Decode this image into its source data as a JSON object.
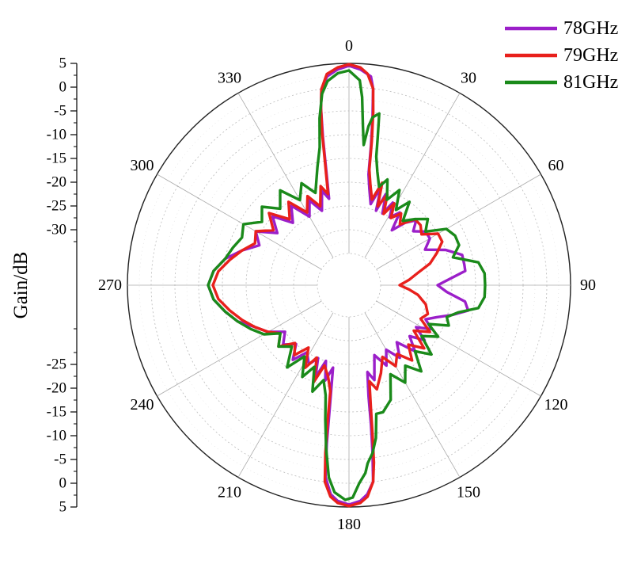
{
  "chart_data": {
    "type": "polar-line",
    "ylabel": "Gain/dB",
    "radial_axis": {
      "min": -35,
      "max": 5,
      "ticks_top": [
        5,
        0,
        -5,
        -10,
        -15,
        -20,
        -25,
        -30
      ],
      "ticks_bottom": [
        -25,
        -20,
        -15,
        -10,
        -5,
        0,
        5
      ],
      "tick_labels_top": [
        "5",
        "0",
        "-5",
        "-10",
        "-15",
        "-20",
        "-25",
        "-30"
      ],
      "tick_labels_bottom": [
        "-25",
        "-20",
        "-15",
        "-10",
        "-5",
        "0",
        "5"
      ]
    },
    "angular_axis": {
      "labels": [
        "0",
        "30",
        "60",
        "90",
        "120",
        "150",
        "180",
        "210",
        "240",
        "270",
        "300",
        "330"
      ],
      "angles": [
        0,
        30,
        60,
        90,
        120,
        150,
        180,
        210,
        240,
        270,
        300,
        330
      ],
      "direction": "clockwise",
      "zero_location": "top"
    },
    "grid": true,
    "legend_position": "top-right",
    "series": [
      {
        "name": "78GHz",
        "color": "#9b1fc9",
        "points": [
          [
            0,
            4.5
          ],
          [
            3,
            3.8
          ],
          [
            6,
            2.5
          ],
          [
            7,
            0
          ],
          [
            8,
            -6
          ],
          [
            9,
            -12
          ],
          [
            10,
            -18
          ],
          [
            12,
            -21
          ],
          [
            15,
            -24
          ],
          [
            18,
            -20
          ],
          [
            20,
            -25
          ],
          [
            22,
            -21
          ],
          [
            25,
            -25
          ],
          [
            28,
            -22
          ],
          [
            31,
            -25
          ],
          [
            35,
            -23
          ],
          [
            38,
            -27
          ],
          [
            42,
            -24
          ],
          [
            46,
            -22
          ],
          [
            50,
            -24
          ],
          [
            55,
            -22
          ],
          [
            60,
            -22
          ],
          [
            65,
            -24
          ],
          [
            70,
            -20
          ],
          [
            75,
            -17
          ],
          [
            80,
            -17
          ],
          [
            83,
            -17
          ],
          [
            86,
            -20
          ],
          [
            90,
            -23
          ],
          [
            94,
            -21
          ],
          [
            98,
            -17
          ],
          [
            102,
            -16
          ],
          [
            106,
            -19
          ],
          [
            110,
            -22
          ],
          [
            114,
            -24
          ],
          [
            118,
            -22
          ],
          [
            122,
            -25
          ],
          [
            126,
            -22
          ],
          [
            130,
            -25
          ],
          [
            135,
            -22
          ],
          [
            140,
            -26
          ],
          [
            145,
            -23
          ],
          [
            150,
            -26
          ],
          [
            155,
            -23
          ],
          [
            160,
            -26
          ],
          [
            165,
            -21
          ],
          [
            168,
            -23
          ],
          [
            170,
            -18
          ],
          [
            171,
            -12
          ],
          [
            172,
            -6
          ],
          [
            173,
            0
          ],
          [
            175,
            2.5
          ],
          [
            177,
            3.8
          ],
          [
            180,
            4.5
          ],
          [
            183,
            3.8
          ],
          [
            185,
            2.5
          ],
          [
            187,
            -1
          ],
          [
            188,
            -8
          ],
          [
            189,
            -16
          ],
          [
            191,
            -24
          ],
          [
            194,
            -21
          ],
          [
            197,
            -25
          ],
          [
            200,
            -21
          ],
          [
            203,
            -25
          ],
          [
            207,
            -23
          ],
          [
            212,
            -25
          ],
          [
            217,
            -22
          ],
          [
            222,
            -25
          ],
          [
            228,
            -23
          ],
          [
            234,
            -25
          ],
          [
            240,
            -22
          ],
          [
            246,
            -20
          ],
          [
            252,
            -17
          ],
          [
            258,
            -15
          ],
          [
            264,
            -13
          ],
          [
            270,
            -12
          ],
          [
            276,
            -13
          ],
          [
            282,
            -15
          ],
          [
            288,
            -18
          ],
          [
            294,
            -21
          ],
          [
            300,
            -19
          ],
          [
            306,
            -23
          ],
          [
            312,
            -20
          ],
          [
            318,
            -24
          ],
          [
            324,
            -21
          ],
          [
            330,
            -25
          ],
          [
            335,
            -22
          ],
          [
            340,
            -25
          ],
          [
            344,
            -21
          ],
          [
            347,
            -23
          ],
          [
            349,
            -16
          ],
          [
            350,
            -10
          ],
          [
            351,
            -4
          ],
          [
            352,
            0
          ],
          [
            354,
            2.5
          ],
          [
            357,
            3.8
          ],
          [
            360,
            4.5
          ]
        ]
      },
      {
        "name": "79GHz",
        "color": "#e8201c",
        "points": [
          [
            0,
            4.8
          ],
          [
            3,
            4.2
          ],
          [
            5,
            3
          ],
          [
            7,
            0
          ],
          [
            8,
            -5
          ],
          [
            9,
            -11
          ],
          [
            10,
            -17
          ],
          [
            12,
            -20
          ],
          [
            15,
            -23
          ],
          [
            18,
            -19
          ],
          [
            20,
            -24
          ],
          [
            23,
            -21
          ],
          [
            26,
            -25
          ],
          [
            29,
            -22
          ],
          [
            32,
            -25
          ],
          [
            36,
            -23
          ],
          [
            40,
            -25
          ],
          [
            45,
            -22
          ],
          [
            50,
            -22
          ],
          [
            55,
            -23
          ],
          [
            60,
            -20
          ],
          [
            65,
            -20
          ],
          [
            70,
            -22
          ],
          [
            75,
            -24
          ],
          [
            80,
            -27
          ],
          [
            85,
            -29
          ],
          [
            90,
            -31
          ],
          [
            94,
            -29
          ],
          [
            98,
            -27
          ],
          [
            104,
            -25
          ],
          [
            110,
            -24
          ],
          [
            115,
            -25
          ],
          [
            120,
            -22
          ],
          [
            125,
            -25
          ],
          [
            130,
            -21
          ],
          [
            135,
            -24
          ],
          [
            140,
            -21
          ],
          [
            145,
            -24
          ],
          [
            150,
            -22
          ],
          [
            155,
            -25
          ],
          [
            160,
            -22
          ],
          [
            165,
            -19
          ],
          [
            168,
            -21
          ],
          [
            170,
            -15
          ],
          [
            171,
            -10
          ],
          [
            172,
            -4
          ],
          [
            173,
            0
          ],
          [
            175,
            3
          ],
          [
            177,
            4.2
          ],
          [
            180,
            4.8
          ],
          [
            183,
            4.2
          ],
          [
            185,
            3
          ],
          [
            187,
            0
          ],
          [
            188,
            -6
          ],
          [
            189,
            -13
          ],
          [
            190,
            -19
          ],
          [
            193,
            -22
          ],
          [
            197,
            -24
          ],
          [
            200,
            -20
          ],
          [
            204,
            -25
          ],
          [
            208,
            -22
          ],
          [
            213,
            -26
          ],
          [
            218,
            -23
          ],
          [
            223,
            -25
          ],
          [
            229,
            -22
          ],
          [
            235,
            -24
          ],
          [
            240,
            -22
          ],
          [
            246,
            -20
          ],
          [
            252,
            -18
          ],
          [
            258,
            -16
          ],
          [
            264,
            -14
          ],
          [
            270,
            -13
          ],
          [
            276,
            -14
          ],
          [
            282,
            -16
          ],
          [
            288,
            -18
          ],
          [
            294,
            -20
          ],
          [
            300,
            -19
          ],
          [
            306,
            -22
          ],
          [
            312,
            -19
          ],
          [
            318,
            -23
          ],
          [
            324,
            -20
          ],
          [
            330,
            -24
          ],
          [
            335,
            -21
          ],
          [
            340,
            -24
          ],
          [
            344,
            -20
          ],
          [
            347,
            -22
          ],
          [
            349,
            -15
          ],
          [
            350,
            -9
          ],
          [
            351,
            -4
          ],
          [
            352,
            0
          ],
          [
            354,
            3
          ],
          [
            357,
            4.2
          ],
          [
            360,
            4.8
          ]
        ]
      },
      {
        "name": "81GHz",
        "color": "#1a8a1a",
        "points": [
          [
            0,
            3.5
          ],
          [
            3,
            1.5
          ],
          [
            4,
            -2
          ],
          [
            5,
            -8
          ],
          [
            6,
            -12
          ],
          [
            7,
            -8
          ],
          [
            8,
            -6
          ],
          [
            10,
            -5
          ],
          [
            11,
            -10
          ],
          [
            12,
            -14
          ],
          [
            14,
            -17
          ],
          [
            17,
            -20
          ],
          [
            20,
            -18
          ],
          [
            24,
            -22
          ],
          [
            28,
            -19
          ],
          [
            32,
            -23
          ],
          [
            36,
            -20
          ],
          [
            40,
            -24
          ],
          [
            45,
            -22
          ],
          [
            50,
            -20
          ],
          [
            55,
            -22
          ],
          [
            60,
            -18
          ],
          [
            65,
            -17
          ],
          [
            70,
            -17
          ],
          [
            75,
            -19
          ],
          [
            80,
            -14
          ],
          [
            85,
            -13
          ],
          [
            90,
            -13
          ],
          [
            95,
            -13
          ],
          [
            100,
            -14
          ],
          [
            104,
            -18
          ],
          [
            108,
            -20
          ],
          [
            112,
            -19
          ],
          [
            116,
            -23
          ],
          [
            120,
            -20
          ],
          [
            125,
            -23
          ],
          [
            130,
            -19
          ],
          [
            135,
            -22
          ],
          [
            140,
            -18
          ],
          [
            145,
            -21
          ],
          [
            150,
            -18
          ],
          [
            155,
            -21
          ],
          [
            160,
            -16
          ],
          [
            165,
            -14
          ],
          [
            168,
            -14
          ],
          [
            170,
            -9
          ],
          [
            172,
            -6
          ],
          [
            174,
            -4
          ],
          [
            175,
            -2
          ],
          [
            177,
            0
          ],
          [
            179,
            3
          ],
          [
            181,
            3.5
          ],
          [
            184,
            2
          ],
          [
            186,
            -1
          ],
          [
            188,
            -7
          ],
          [
            190,
            -13
          ],
          [
            192,
            -18
          ],
          [
            195,
            -21
          ],
          [
            199,
            -18
          ],
          [
            203,
            -23
          ],
          [
            207,
            -20
          ],
          [
            212,
            -24
          ],
          [
            217,
            -20
          ],
          [
            223,
            -24
          ],
          [
            229,
            -22
          ],
          [
            235,
            -24
          ],
          [
            240,
            -21
          ],
          [
            246,
            -19
          ],
          [
            252,
            -17
          ],
          [
            258,
            -15
          ],
          [
            264,
            -13
          ],
          [
            270,
            -12
          ],
          [
            276,
            -13
          ],
          [
            282,
            -15
          ],
          [
            288,
            -16
          ],
          [
            294,
            -17
          ],
          [
            300,
            -16
          ],
          [
            306,
            -19
          ],
          [
            312,
            -17
          ],
          [
            318,
            -20
          ],
          [
            324,
            -17
          ],
          [
            330,
            -21
          ],
          [
            335,
            -18
          ],
          [
            340,
            -21
          ],
          [
            345,
            -16
          ],
          [
            348,
            -12
          ],
          [
            350,
            -6
          ],
          [
            352,
            -1
          ],
          [
            354,
            1.5
          ],
          [
            357,
            3
          ],
          [
            360,
            3.5
          ]
        ]
      }
    ]
  }
}
